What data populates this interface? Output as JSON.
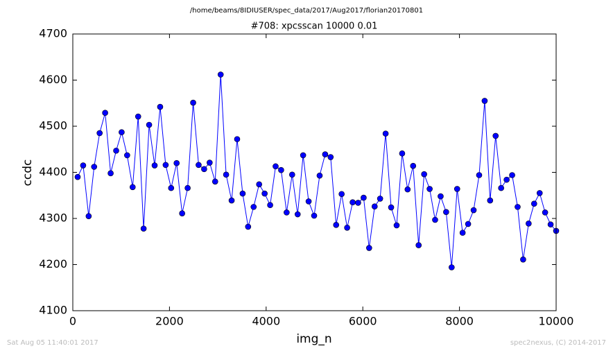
{
  "chart_data": {
    "type": "line",
    "title": "/home/beams/8IDIUSER/spec_data/2017/Aug2017/florian20170801",
    "subtitle": "#708: xpcsscan 10000 0.01",
    "x_label": "img_n",
    "y_label": "ccdc",
    "x": [
      100,
      214,
      328,
      441,
      555,
      669,
      783,
      897,
      1010,
      1124,
      1238,
      1352,
      1465,
      1579,
      1693,
      1807,
      1921,
      2034,
      2148,
      2262,
      2376,
      2490,
      2603,
      2717,
      2831,
      2945,
      3059,
      3172,
      3286,
      3400,
      3514,
      3627,
      3741,
      3855,
      3969,
      4083,
      4196,
      4310,
      4424,
      4538,
      4652,
      4765,
      4879,
      4993,
      5107,
      5221,
      5334,
      5448,
      5562,
      5676,
      5790,
      5903,
      6017,
      6131,
      6245,
      6358,
      6472,
      6586,
      6700,
      6814,
      6927,
      7041,
      7155,
      7269,
      7383,
      7496,
      7610,
      7724,
      7838,
      7952,
      8065,
      8179,
      8293,
      8407,
      8521,
      8634,
      8748,
      8862,
      8976,
      9090,
      9203,
      9317,
      9431,
      9545,
      9659,
      9772,
      9886,
      10000
    ],
    "values": [
      4390,
      4415,
      4305,
      4412,
      4485,
      4529,
      4398,
      4447,
      4487,
      4437,
      4368,
      4521,
      4278,
      4503,
      4415,
      4542,
      4416,
      4366,
      4420,
      4311,
      4366,
      4551,
      4416,
      4407,
      4421,
      4380,
      4612,
      4395,
      4339,
      4472,
      4354,
      4282,
      4325,
      4374,
      4354,
      4329,
      4413,
      4405,
      4313,
      4395,
      4309,
      4437,
      4337,
      4306,
      4393,
      4439,
      4433,
      4286,
      4353,
      4280,
      4335,
      4334,
      4345,
      4236,
      4326,
      4343,
      4484,
      4324,
      4285,
      4441,
      4363,
      4414,
      4242,
      4396,
      4364,
      4297,
      4348,
      4314,
      4194,
      4364,
      4269,
      4288,
      4318,
      4394,
      4555,
      4339,
      4479,
      4366,
      4384,
      4394,
      4325,
      4211,
      4289,
      4332,
      4355,
      4313,
      4287,
      4273
    ],
    "color": "#0000ff",
    "xlim": [
      0,
      10000
    ],
    "xticks": [
      0,
      2000,
      4000,
      6000,
      8000,
      10000
    ],
    "ylim": [
      4100,
      4700
    ],
    "yticks": [
      4100,
      4200,
      4300,
      4400,
      4500,
      4600,
      4700
    ],
    "grid": false
  },
  "footer": {
    "left": "Sat Aug 05 11:40:01 2017",
    "right": "spec2nexus, (C) 2014-2017"
  }
}
